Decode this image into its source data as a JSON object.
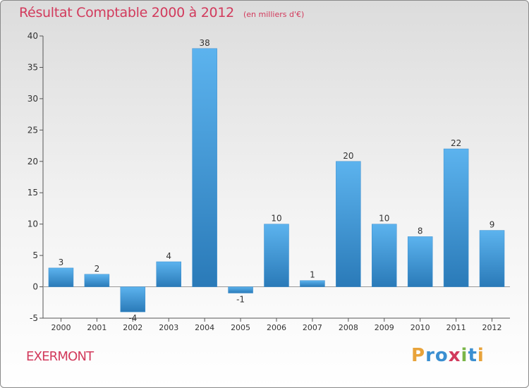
{
  "header": {
    "title": "Résultat Comptable 2000 à 2012",
    "subtitle": "(en milliers d'€)"
  },
  "footer": {
    "city": "EXERMONT",
    "brand": "Proxiti",
    "brand_colors": [
      "#e8a33a",
      "#3b8fd1",
      "#3b8fd1",
      "#d23a5c",
      "#7ab648",
      "#3b8fd1",
      "#e8a33a"
    ]
  },
  "colors": {
    "bar_light": "#5cb3ee",
    "bar_dark": "#2a7ab8",
    "axis": "#555555",
    "grid": "#bdbdbd",
    "text": "#333333"
  },
  "chart_data": {
    "type": "bar",
    "title": "Résultat Comptable 2000 à 2012",
    "xlabel": "",
    "ylabel": "",
    "categories": [
      "2000",
      "2001",
      "2002",
      "2003",
      "2004",
      "2005",
      "2006",
      "2007",
      "2008",
      "2009",
      "2010",
      "2011",
      "2012"
    ],
    "values": [
      3,
      2,
      -4,
      4,
      38,
      -1,
      10,
      1,
      20,
      10,
      8,
      22,
      9
    ],
    "labels": [
      "3",
      "2",
      "-4",
      "4",
      "38",
      "-1",
      "10",
      "1",
      "20",
      "10",
      "8",
      "22",
      "9"
    ],
    "ylim": [
      -5,
      40
    ],
    "yticks": [
      -5,
      0,
      5,
      10,
      15,
      20,
      25,
      30,
      35,
      40
    ],
    "grid": false,
    "legend": "none"
  }
}
